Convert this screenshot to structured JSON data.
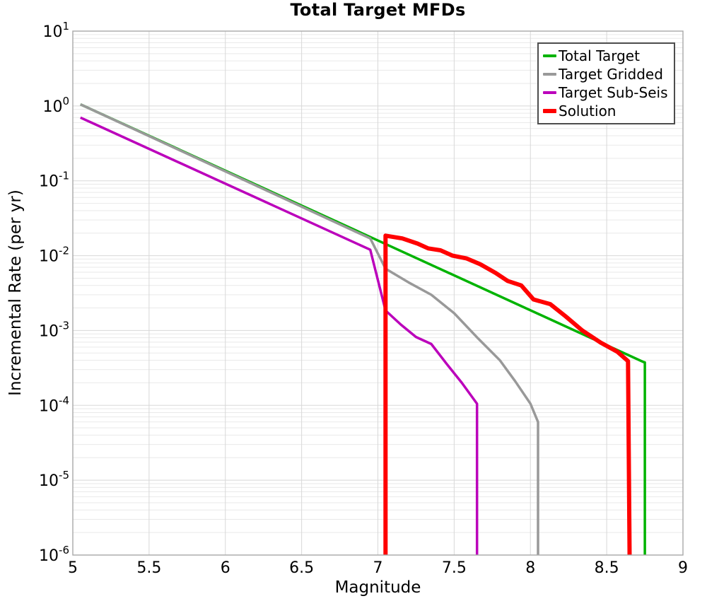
{
  "figure": {
    "background": "#ffffff",
    "box_color": "#a9a9a9",
    "grid_major_color": "#d8d8d8",
    "grid_minor_color": "#e9e9e9",
    "text_color": "#000000",
    "legend_border_color": "#4d4d4d"
  },
  "chart_data": {
    "type": "line",
    "title": "Total Target MFDs",
    "xlabel": "Magnitude",
    "ylabel": "Incremental Rate (per yr)",
    "xlim": [
      5,
      9
    ],
    "ylim_exp": [
      -6,
      1
    ],
    "x_ticks": [
      5,
      5.5,
      6,
      6.5,
      7,
      7.5,
      8,
      8.5,
      9
    ],
    "y_tick_exponents": [
      1,
      0,
      -1,
      -2,
      -3,
      -4,
      -5,
      -6
    ],
    "grid": true,
    "log_y": true,
    "legend_position": "upper right",
    "series": [
      {
        "name": "Total Target",
        "color": "#00b300",
        "width": 3.5,
        "points": [
          [
            5.05,
            1.05
          ],
          [
            8.74,
            0.00038
          ],
          [
            8.75,
            0.000375
          ],
          [
            8.75,
            1e-06
          ]
        ]
      },
      {
        "name": "Target Gridded",
        "color": "#999999",
        "width": 3.5,
        "points": [
          [
            5.05,
            1.05
          ],
          [
            6.95,
            0.017
          ],
          [
            7.05,
            0.0067
          ],
          [
            7.2,
            0.0044
          ],
          [
            7.35,
            0.003
          ],
          [
            7.5,
            0.0017
          ],
          [
            7.65,
            0.00081
          ],
          [
            7.8,
            0.0004
          ],
          [
            7.9,
            0.00021
          ],
          [
            8.0,
            0.000105
          ],
          [
            8.05,
            6e-05
          ],
          [
            8.05,
            1e-06
          ]
        ]
      },
      {
        "name": "Target Sub-Seis",
        "color": "#bb00bb",
        "width": 3.5,
        "points": [
          [
            5.05,
            0.7
          ],
          [
            6.95,
            0.012
          ],
          [
            7.05,
            0.00185
          ],
          [
            7.15,
            0.0012
          ],
          [
            7.25,
            0.00082
          ],
          [
            7.35,
            0.00066
          ],
          [
            7.45,
            0.00036
          ],
          [
            7.55,
            0.0002
          ],
          [
            7.65,
            0.000105
          ],
          [
            7.65,
            1e-06
          ]
        ]
      },
      {
        "name": "Solution",
        "color": "#ff0000",
        "width": 6,
        "points": [
          [
            7.05,
            1e-06
          ],
          [
            7.05,
            0.0185
          ],
          [
            7.16,
            0.017
          ],
          [
            7.26,
            0.0145
          ],
          [
            7.33,
            0.0125
          ],
          [
            7.41,
            0.0118
          ],
          [
            7.49,
            0.01
          ],
          [
            7.58,
            0.0092
          ],
          [
            7.67,
            0.0077
          ],
          [
            7.77,
            0.0059
          ],
          [
            7.85,
            0.0046
          ],
          [
            7.94,
            0.004
          ],
          [
            8.02,
            0.0026
          ],
          [
            8.13,
            0.00225
          ],
          [
            8.23,
            0.00155
          ],
          [
            8.34,
            0.001
          ],
          [
            8.46,
            0.00069
          ],
          [
            8.57,
            0.00052
          ],
          [
            8.64,
            0.00039
          ],
          [
            8.65,
            1e-06
          ]
        ]
      }
    ]
  }
}
